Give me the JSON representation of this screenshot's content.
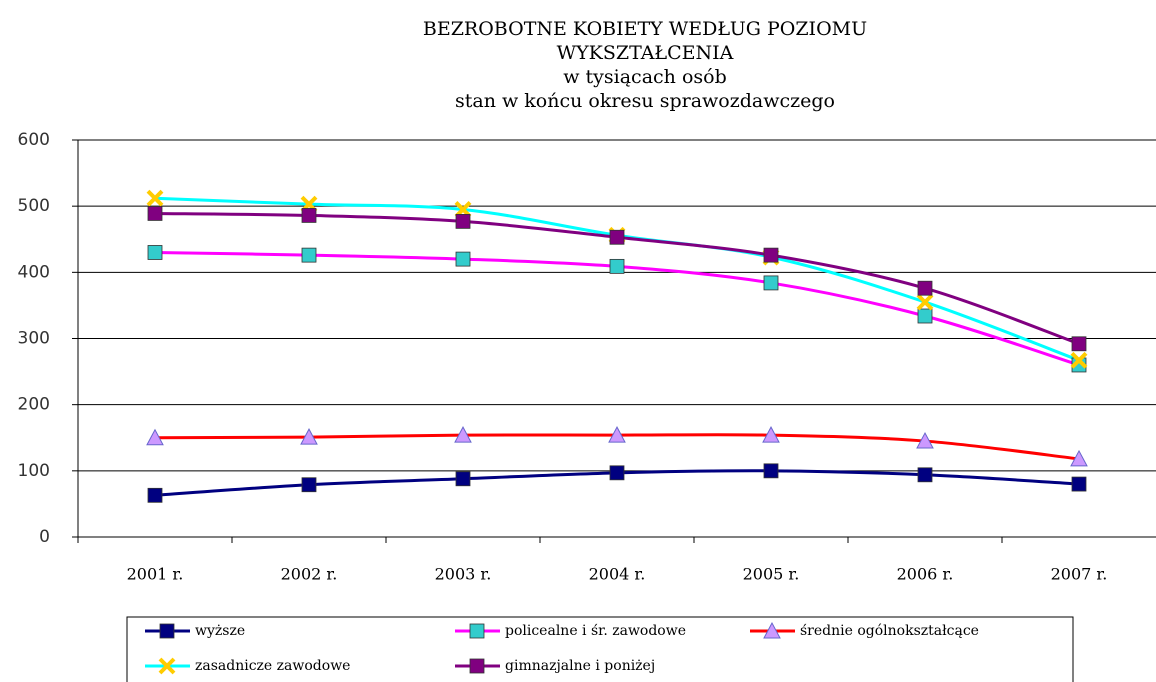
{
  "chart_data": {
    "type": "line",
    "title": [
      "BEZROBOTNE KOBIETY WEDŁUG  POZIOMU",
      "WYKSZTAŁCENIA",
      "w tysiącach osób",
      "stan w końcu okresu sprawozdawczego"
    ],
    "categories": [
      "2001 r.",
      "2002 r.",
      "2003 r.",
      "2004 r.",
      "2005 r.",
      "2006 r.",
      "2007 r."
    ],
    "series": [
      {
        "name": "wyższe",
        "color": "#000080",
        "marker_color": "#000080",
        "marker": "square",
        "values": [
          63,
          79,
          88,
          97,
          100,
          94,
          80
        ]
      },
      {
        "name": "policealne i śr. zawodowe",
        "color": "#ff00ff",
        "marker_color": "#33cccc",
        "marker": "square",
        "values": [
          430,
          426,
          420,
          409,
          384,
          334,
          260
        ]
      },
      {
        "name": "średnie ogólnokształcące",
        "color": "#ff0000",
        "marker_color": "#cc99ff",
        "marker": "triangle",
        "values": [
          150,
          151,
          154,
          154,
          154,
          145,
          118
        ]
      },
      {
        "name": "zasadnicze zawodowe",
        "color": "#00ffff",
        "marker_color": "#ffcc00",
        "marker": "x",
        "values": [
          512,
          503,
          495,
          456,
          423,
          355,
          267
        ]
      },
      {
        "name": "gimnazjalne i poniżej",
        "color": "#800080",
        "marker_color": "#800080",
        "marker": "square",
        "values": [
          489,
          486,
          477,
          453,
          426,
          376,
          292
        ]
      }
    ],
    "ylim": [
      0,
      600
    ],
    "yticks": [
      0,
      100,
      200,
      300,
      400,
      500,
      600
    ],
    "grid": true,
    "legend": "bottom"
  }
}
